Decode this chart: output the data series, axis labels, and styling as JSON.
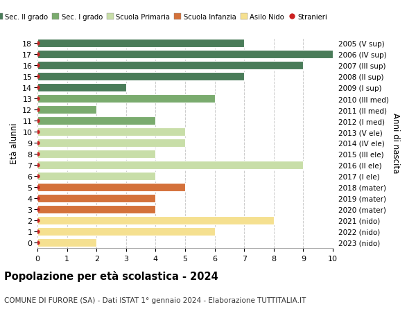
{
  "ages": [
    0,
    1,
    2,
    3,
    4,
    5,
    6,
    7,
    8,
    9,
    10,
    11,
    12,
    13,
    14,
    15,
    16,
    17,
    18
  ],
  "years": [
    "2023 (nido)",
    "2022 (nido)",
    "2021 (nido)",
    "2020 (mater)",
    "2019 (mater)",
    "2018 (mater)",
    "2017 (I ele)",
    "2016 (II ele)",
    "2015 (III ele)",
    "2014 (IV ele)",
    "2013 (V ele)",
    "2012 (I med)",
    "2011 (II med)",
    "2010 (III med)",
    "2009 (I sup)",
    "2008 (II sup)",
    "2007 (III sup)",
    "2006 (IV sup)",
    "2005 (V sup)"
  ],
  "values": [
    2,
    6,
    8,
    4,
    4,
    5,
    4,
    9,
    4,
    5,
    5,
    4,
    2,
    6,
    3,
    7,
    9,
    10,
    7
  ],
  "bar_colors": [
    "#f5e090",
    "#f5e090",
    "#f5e090",
    "#d4713a",
    "#d4713a",
    "#d4713a",
    "#c8dea8",
    "#c8dea8",
    "#c8dea8",
    "#c8dea8",
    "#c8dea8",
    "#7aab6e",
    "#7aab6e",
    "#7aab6e",
    "#4a7c59",
    "#4a7c59",
    "#4a7c59",
    "#4a7c59",
    "#4a7c59"
  ],
  "legend_labels": [
    "Sec. II grado",
    "Sec. I grado",
    "Scuola Primaria",
    "Scuola Infanzia",
    "Asilo Nido",
    "Stranieri"
  ],
  "legend_colors": [
    "#4a7c59",
    "#7aab6e",
    "#c8dea8",
    "#d4713a",
    "#f5e090",
    "#cc2222"
  ],
  "right_ylabel": "Anni di nascita",
  "left_ylabel": "Età alunni",
  "title": "Popolazione per età scolastica - 2024",
  "subtitle": "COMUNE DI FURORE (SA) - Dati ISTAT 1° gennaio 2024 - Elaborazione TUTTITALIA.IT",
  "xlim": [
    0,
    10
  ],
  "dot_color": "#cc2222",
  "background_color": "#ffffff",
  "grid_color": "#cccccc",
  "bar_edge_color": "#ffffff"
}
